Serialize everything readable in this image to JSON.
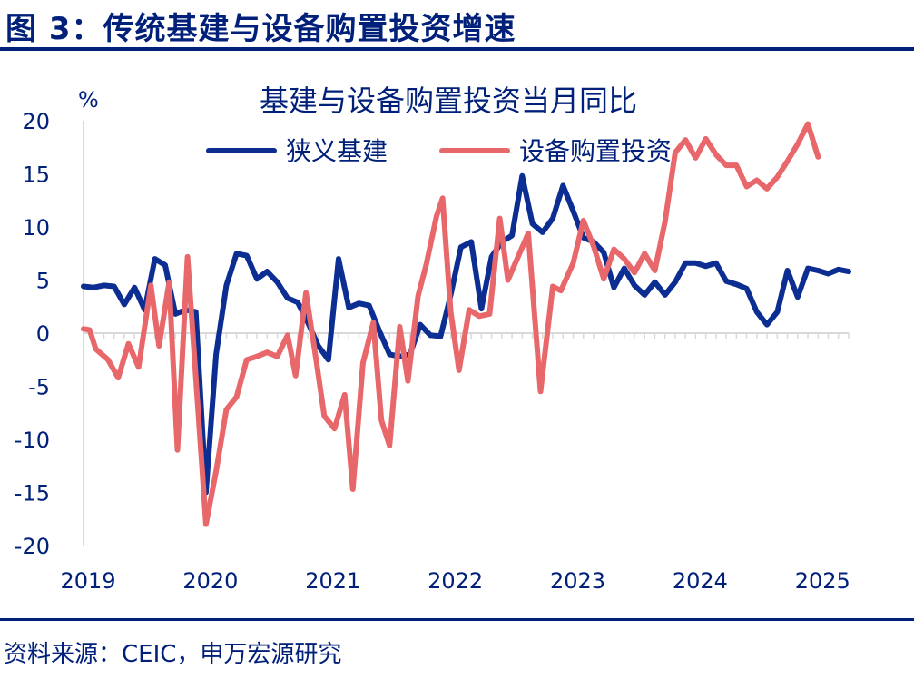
{
  "figure_title": "图 3：传统基建与设备购置投资增速",
  "source_note": "资料来源：CEIC，申万宏源研究",
  "chart_data": {
    "type": "line",
    "title": "基建与设备购置投资当月同比",
    "ylabel": "%",
    "xlabel": "",
    "ylim": [
      -20,
      20
    ],
    "yticks": [
      20,
      15,
      10,
      5,
      0,
      -5,
      -10,
      -15,
      -20
    ],
    "xticks": [
      "2019",
      "2020",
      "2021",
      "2022",
      "2023",
      "2024",
      "2025"
    ],
    "xlim": [
      2019,
      2025.25
    ],
    "grid": false,
    "legend_position": "top",
    "series": [
      {
        "name": "狭义基建",
        "color": "#0c2d91",
        "points": [
          [
            2019.0,
            4.4
          ],
          [
            2019.083,
            4.3
          ],
          [
            2019.167,
            4.5
          ],
          [
            2019.25,
            4.4
          ],
          [
            2019.333,
            2.7
          ],
          [
            2019.417,
            4.3
          ],
          [
            2019.5,
            2.2
          ],
          [
            2019.583,
            7.0
          ],
          [
            2019.667,
            6.4
          ],
          [
            2019.75,
            1.8
          ],
          [
            2019.833,
            2.2
          ],
          [
            2019.917,
            2.0
          ],
          [
            2020.0,
            -15.0
          ],
          [
            2020.083,
            -2.0
          ],
          [
            2020.167,
            4.5
          ],
          [
            2020.25,
            7.5
          ],
          [
            2020.333,
            7.3
          ],
          [
            2020.417,
            5.1
          ],
          [
            2020.5,
            5.8
          ],
          [
            2020.583,
            4.8
          ],
          [
            2020.667,
            3.3
          ],
          [
            2020.75,
            2.9
          ],
          [
            2020.833,
            1.0
          ],
          [
            2020.917,
            -1.2
          ],
          [
            2021.0,
            -2.5
          ],
          [
            2021.083,
            7.0
          ],
          [
            2021.167,
            2.4
          ],
          [
            2021.25,
            2.8
          ],
          [
            2021.333,
            2.6
          ],
          [
            2021.417,
            0.2
          ],
          [
            2021.5,
            -2.0
          ],
          [
            2021.583,
            -2.2
          ],
          [
            2021.667,
            -2.0
          ],
          [
            2021.75,
            0.8
          ],
          [
            2021.833,
            -0.2
          ],
          [
            2021.917,
            -0.3
          ],
          [
            2022.0,
            3.6
          ],
          [
            2022.083,
            8.1
          ],
          [
            2022.167,
            8.6
          ],
          [
            2022.25,
            2.3
          ],
          [
            2022.333,
            7.2
          ],
          [
            2022.417,
            8.6
          ],
          [
            2022.5,
            9.2
          ],
          [
            2022.583,
            14.8
          ],
          [
            2022.667,
            10.3
          ],
          [
            2022.75,
            9.5
          ],
          [
            2022.833,
            10.8
          ],
          [
            2022.917,
            13.9
          ],
          [
            2023.0,
            11.5
          ],
          [
            2023.083,
            9.0
          ],
          [
            2023.167,
            8.6
          ],
          [
            2023.25,
            7.6
          ],
          [
            2023.333,
            4.3
          ],
          [
            2023.417,
            6.1
          ],
          [
            2023.5,
            4.5
          ],
          [
            2023.583,
            3.6
          ],
          [
            2023.667,
            4.8
          ],
          [
            2023.75,
            3.6
          ],
          [
            2023.833,
            4.8
          ],
          [
            2023.917,
            6.6
          ],
          [
            2024.0,
            6.6
          ],
          [
            2024.083,
            6.3
          ],
          [
            2024.167,
            6.6
          ],
          [
            2024.25,
            4.9
          ],
          [
            2024.333,
            4.6
          ],
          [
            2024.417,
            4.2
          ],
          [
            2024.5,
            2.0
          ],
          [
            2024.583,
            0.8
          ],
          [
            2024.667,
            2.0
          ],
          [
            2024.75,
            5.9
          ],
          [
            2024.833,
            3.4
          ],
          [
            2024.917,
            6.1
          ],
          [
            2025.0,
            5.9
          ],
          [
            2025.083,
            5.6
          ],
          [
            2025.167,
            6.0
          ],
          [
            2025.25,
            5.8
          ]
        ]
      },
      {
        "name": "设备购置投资",
        "color": "#e8676a",
        "points": [
          [
            2019.0,
            0.4
          ],
          [
            2019.05,
            0.3
          ],
          [
            2019.1,
            -1.5
          ],
          [
            2019.2,
            -2.5
          ],
          [
            2019.283,
            -4.2
          ],
          [
            2019.367,
            -1.0
          ],
          [
            2019.45,
            -3.2
          ],
          [
            2019.55,
            4.5
          ],
          [
            2019.617,
            -1.2
          ],
          [
            2019.7,
            4.8
          ],
          [
            2019.767,
            -11.0
          ],
          [
            2019.85,
            7.2
          ],
          [
            2020.0,
            -18.0
          ],
          [
            2020.083,
            -13.0
          ],
          [
            2020.167,
            -7.2
          ],
          [
            2020.25,
            -6.0
          ],
          [
            2020.333,
            -2.5
          ],
          [
            2020.417,
            -2.2
          ],
          [
            2020.5,
            -1.8
          ],
          [
            2020.583,
            -2.2
          ],
          [
            2020.667,
            -0.2
          ],
          [
            2020.733,
            -4.0
          ],
          [
            2020.817,
            3.8
          ],
          [
            2020.9,
            -2.5
          ],
          [
            2020.967,
            -7.8
          ],
          [
            2021.05,
            -9.0
          ],
          [
            2021.133,
            -5.8
          ],
          [
            2021.2,
            -14.7
          ],
          [
            2021.283,
            -2.8
          ],
          [
            2021.367,
            1.0
          ],
          [
            2021.433,
            -8.2
          ],
          [
            2021.5,
            -10.6
          ],
          [
            2021.583,
            0.6
          ],
          [
            2021.65,
            -4.5
          ],
          [
            2021.733,
            3.5
          ],
          [
            2021.8,
            6.5
          ],
          [
            2021.883,
            11.0
          ],
          [
            2021.933,
            12.7
          ],
          [
            2022.0,
            2.0
          ],
          [
            2022.067,
            -3.5
          ],
          [
            2022.15,
            2.2
          ],
          [
            2022.233,
            1.6
          ],
          [
            2022.317,
            1.8
          ],
          [
            2022.4,
            10.8
          ],
          [
            2022.467,
            5.0
          ],
          [
            2022.55,
            7.2
          ],
          [
            2022.633,
            9.4
          ],
          [
            2022.733,
            -5.5
          ],
          [
            2022.833,
            4.4
          ],
          [
            2022.9,
            4.0
          ],
          [
            2023.0,
            6.6
          ],
          [
            2023.083,
            10.6
          ],
          [
            2023.167,
            8.2
          ],
          [
            2023.25,
            5.1
          ],
          [
            2023.333,
            7.9
          ],
          [
            2023.417,
            7.0
          ],
          [
            2023.5,
            5.7
          ],
          [
            2023.583,
            7.5
          ],
          [
            2023.667,
            5.9
          ],
          [
            2023.75,
            10.5
          ],
          [
            2023.833,
            17.0
          ],
          [
            2023.917,
            18.2
          ],
          [
            2024.0,
            16.5
          ],
          [
            2024.083,
            18.3
          ],
          [
            2024.167,
            16.8
          ],
          [
            2024.25,
            15.8
          ],
          [
            2024.333,
            15.8
          ],
          [
            2024.417,
            13.8
          ],
          [
            2024.5,
            14.4
          ],
          [
            2024.583,
            13.6
          ],
          [
            2024.667,
            14.7
          ],
          [
            2024.75,
            16.2
          ],
          [
            2024.833,
            17.8
          ],
          [
            2024.917,
            19.7
          ],
          [
            2025.0,
            16.6
          ]
        ]
      }
    ]
  }
}
